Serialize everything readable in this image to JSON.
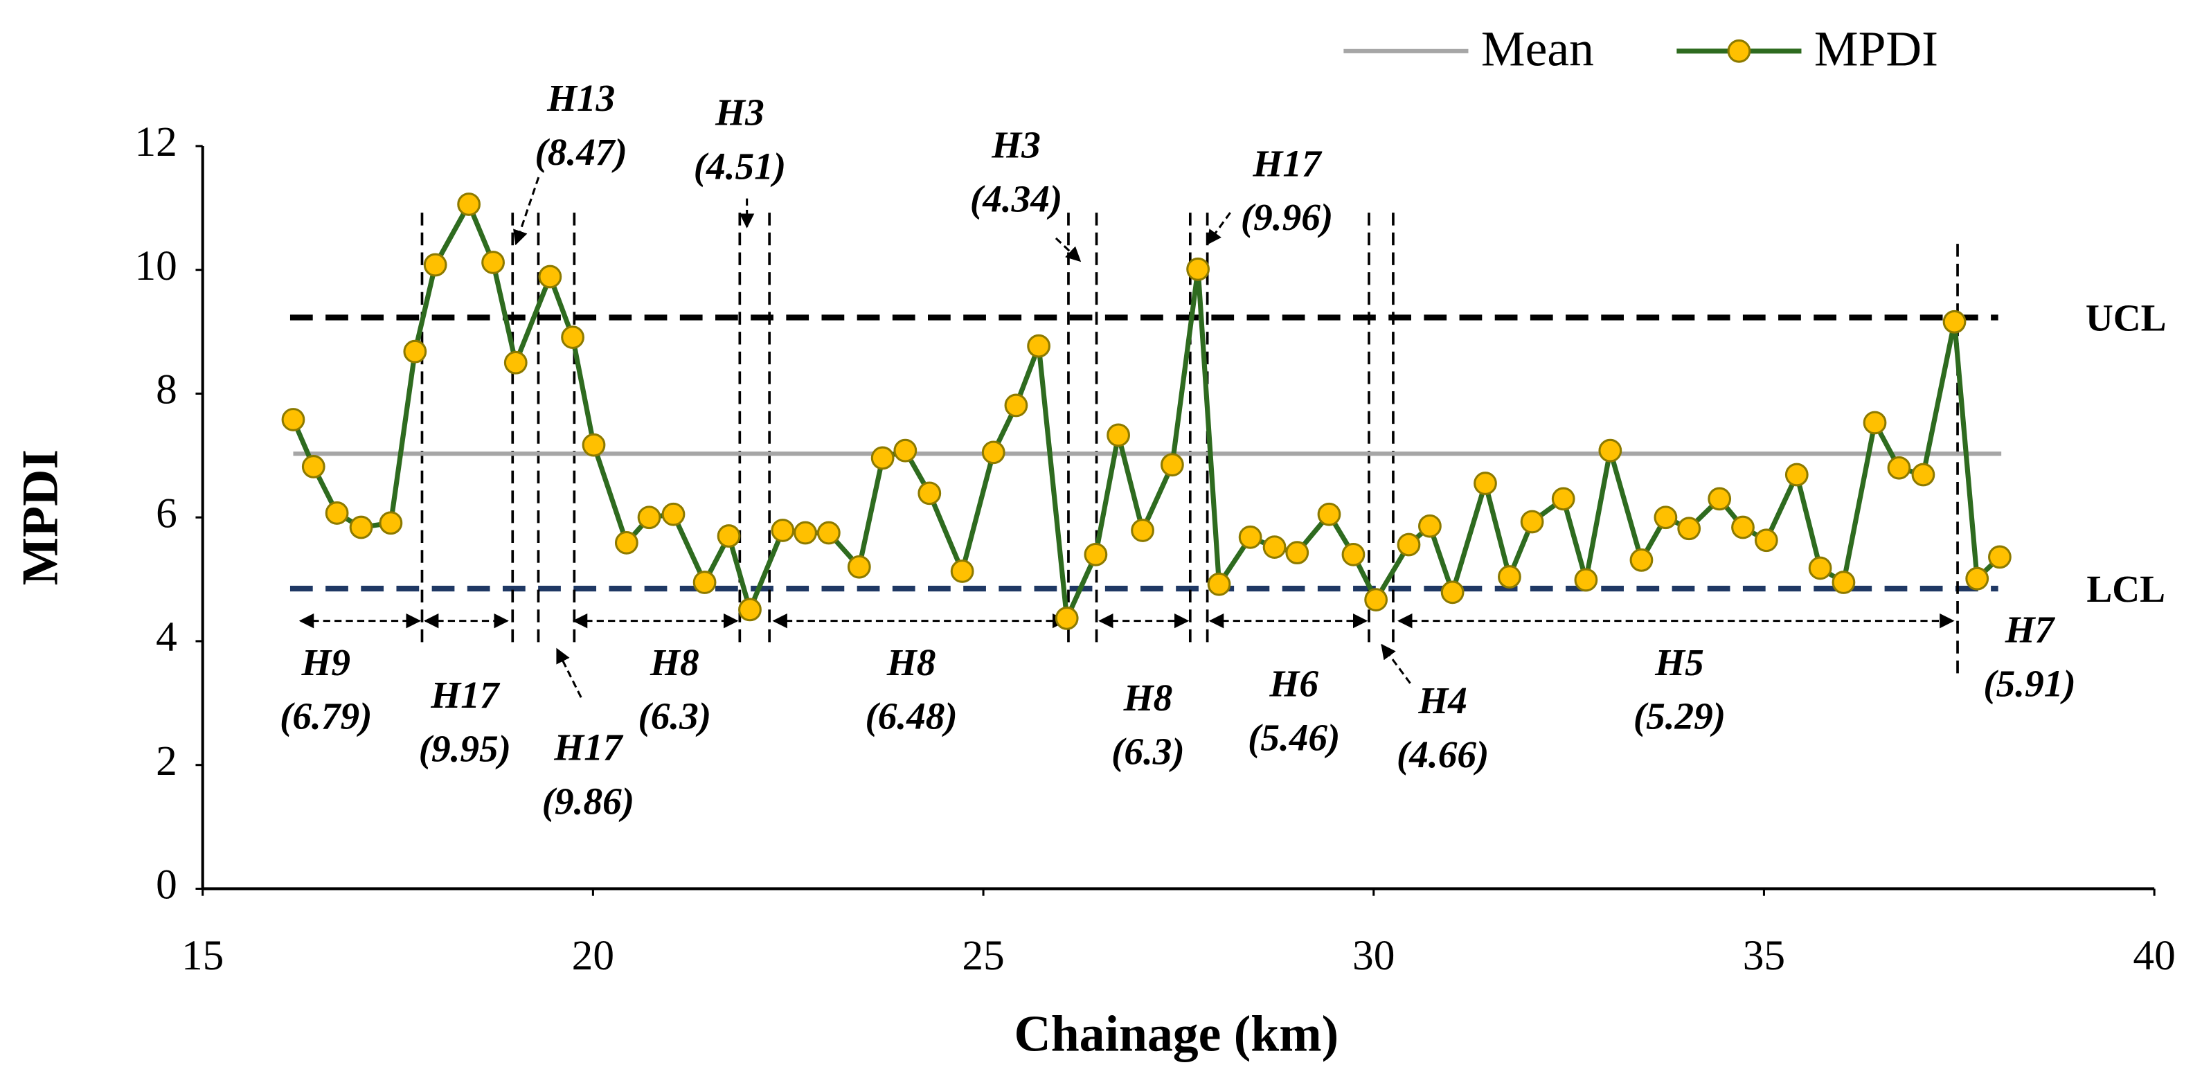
{
  "chart_data": {
    "type": "line",
    "x_label": "Chainage (km)",
    "y_label": "MPDI",
    "xlim": [
      15,
      40
    ],
    "ylim": [
      0,
      12
    ],
    "xticks": [
      15,
      20,
      25,
      30,
      35,
      40
    ],
    "yticks": [
      0,
      2,
      4,
      6,
      8,
      10,
      12
    ],
    "grid": false,
    "legend": "top-right",
    "series": [
      {
        "name": "Mean",
        "color": "#a6a6a6",
        "x": [
          16.16,
          38.04
        ],
        "values": [
          7.03,
          7.03
        ]
      },
      {
        "name": "MPDI",
        "color": "#2e6b1f",
        "marker_color": "#ffc000",
        "x": [
          16.16,
          16.42,
          16.72,
          17.03,
          17.41,
          17.72,
          17.98,
          18.41,
          18.72,
          19.01,
          19.45,
          19.74,
          20.01,
          20.43,
          20.72,
          21.03,
          21.43,
          21.74,
          22.01,
          22.43,
          22.72,
          23.02,
          23.41,
          23.71,
          24.0,
          24.31,
          24.73,
          25.13,
          25.42,
          25.71,
          26.07,
          26.44,
          26.73,
          27.04,
          27.42,
          27.75,
          28.02,
          28.42,
          28.73,
          29.02,
          29.43,
          29.74,
          30.03,
          30.45,
          30.72,
          31.01,
          31.43,
          31.74,
          32.03,
          32.43,
          32.72,
          33.03,
          33.43,
          33.74,
          34.04,
          34.43,
          34.73,
          35.03,
          35.42,
          35.72,
          36.02,
          36.42,
          36.73,
          37.04,
          37.44,
          37.73,
          38.02
        ],
        "values": [
          7.58,
          6.82,
          6.07,
          5.84,
          5.91,
          8.68,
          10.08,
          11.06,
          10.12,
          8.5,
          9.89,
          8.91,
          7.17,
          5.59,
          6.0,
          6.05,
          4.95,
          5.7,
          4.51,
          5.79,
          5.75,
          5.75,
          5.2,
          6.96,
          7.08,
          6.39,
          5.13,
          7.05,
          7.81,
          8.77,
          4.37,
          5.4,
          7.33,
          5.79,
          6.85,
          10.01,
          4.92,
          5.68,
          5.52,
          5.43,
          6.05,
          5.4,
          4.67,
          5.56,
          5.86,
          4.79,
          6.55,
          5.04,
          5.93,
          6.3,
          4.99,
          7.08,
          5.31,
          6.0,
          5.82,
          6.3,
          5.84,
          5.63,
          6.69,
          5.18,
          4.95,
          7.53,
          6.8,
          6.69,
          9.16,
          5.01,
          5.36
        ]
      }
    ],
    "reference_lines": [
      {
        "label": "UCL",
        "value": 9.23,
        "color": "#000000",
        "x": [
          16.12,
          38.0
        ]
      },
      {
        "label": "LCL",
        "value": 4.85,
        "color": "#1f3864",
        "x": [
          16.12,
          38.0
        ]
      }
    ],
    "boundaries": [
      17.81,
      18.97,
      19.3,
      19.76,
      21.88,
      22.26,
      26.09,
      26.45,
      27.65,
      27.87,
      29.94,
      30.25,
      37.48
    ],
    "annotations": [
      {
        "label": "H9",
        "note": "(6.79)"
      },
      {
        "label": "H17",
        "note": "(9.95)"
      },
      {
        "label": "H17",
        "note": "(9.86)"
      },
      {
        "label": "H8",
        "note": "(6.3)"
      },
      {
        "label": "H8",
        "note": "(6.48)"
      },
      {
        "label": "H8",
        "note": "(6.3)"
      },
      {
        "label": "H6",
        "note": "(5.46)"
      },
      {
        "label": "H4",
        "note": "(4.66)"
      },
      {
        "label": "H5",
        "note": "(5.29)"
      },
      {
        "label": "H7",
        "note": "(5.91)"
      },
      {
        "label": "H13",
        "note": "(8.47)"
      },
      {
        "label": "H3",
        "note": "(4.51)"
      },
      {
        "label": "H3",
        "note": "(4.34)"
      },
      {
        "label": "H17",
        "note": "(9.96)"
      }
    ]
  }
}
